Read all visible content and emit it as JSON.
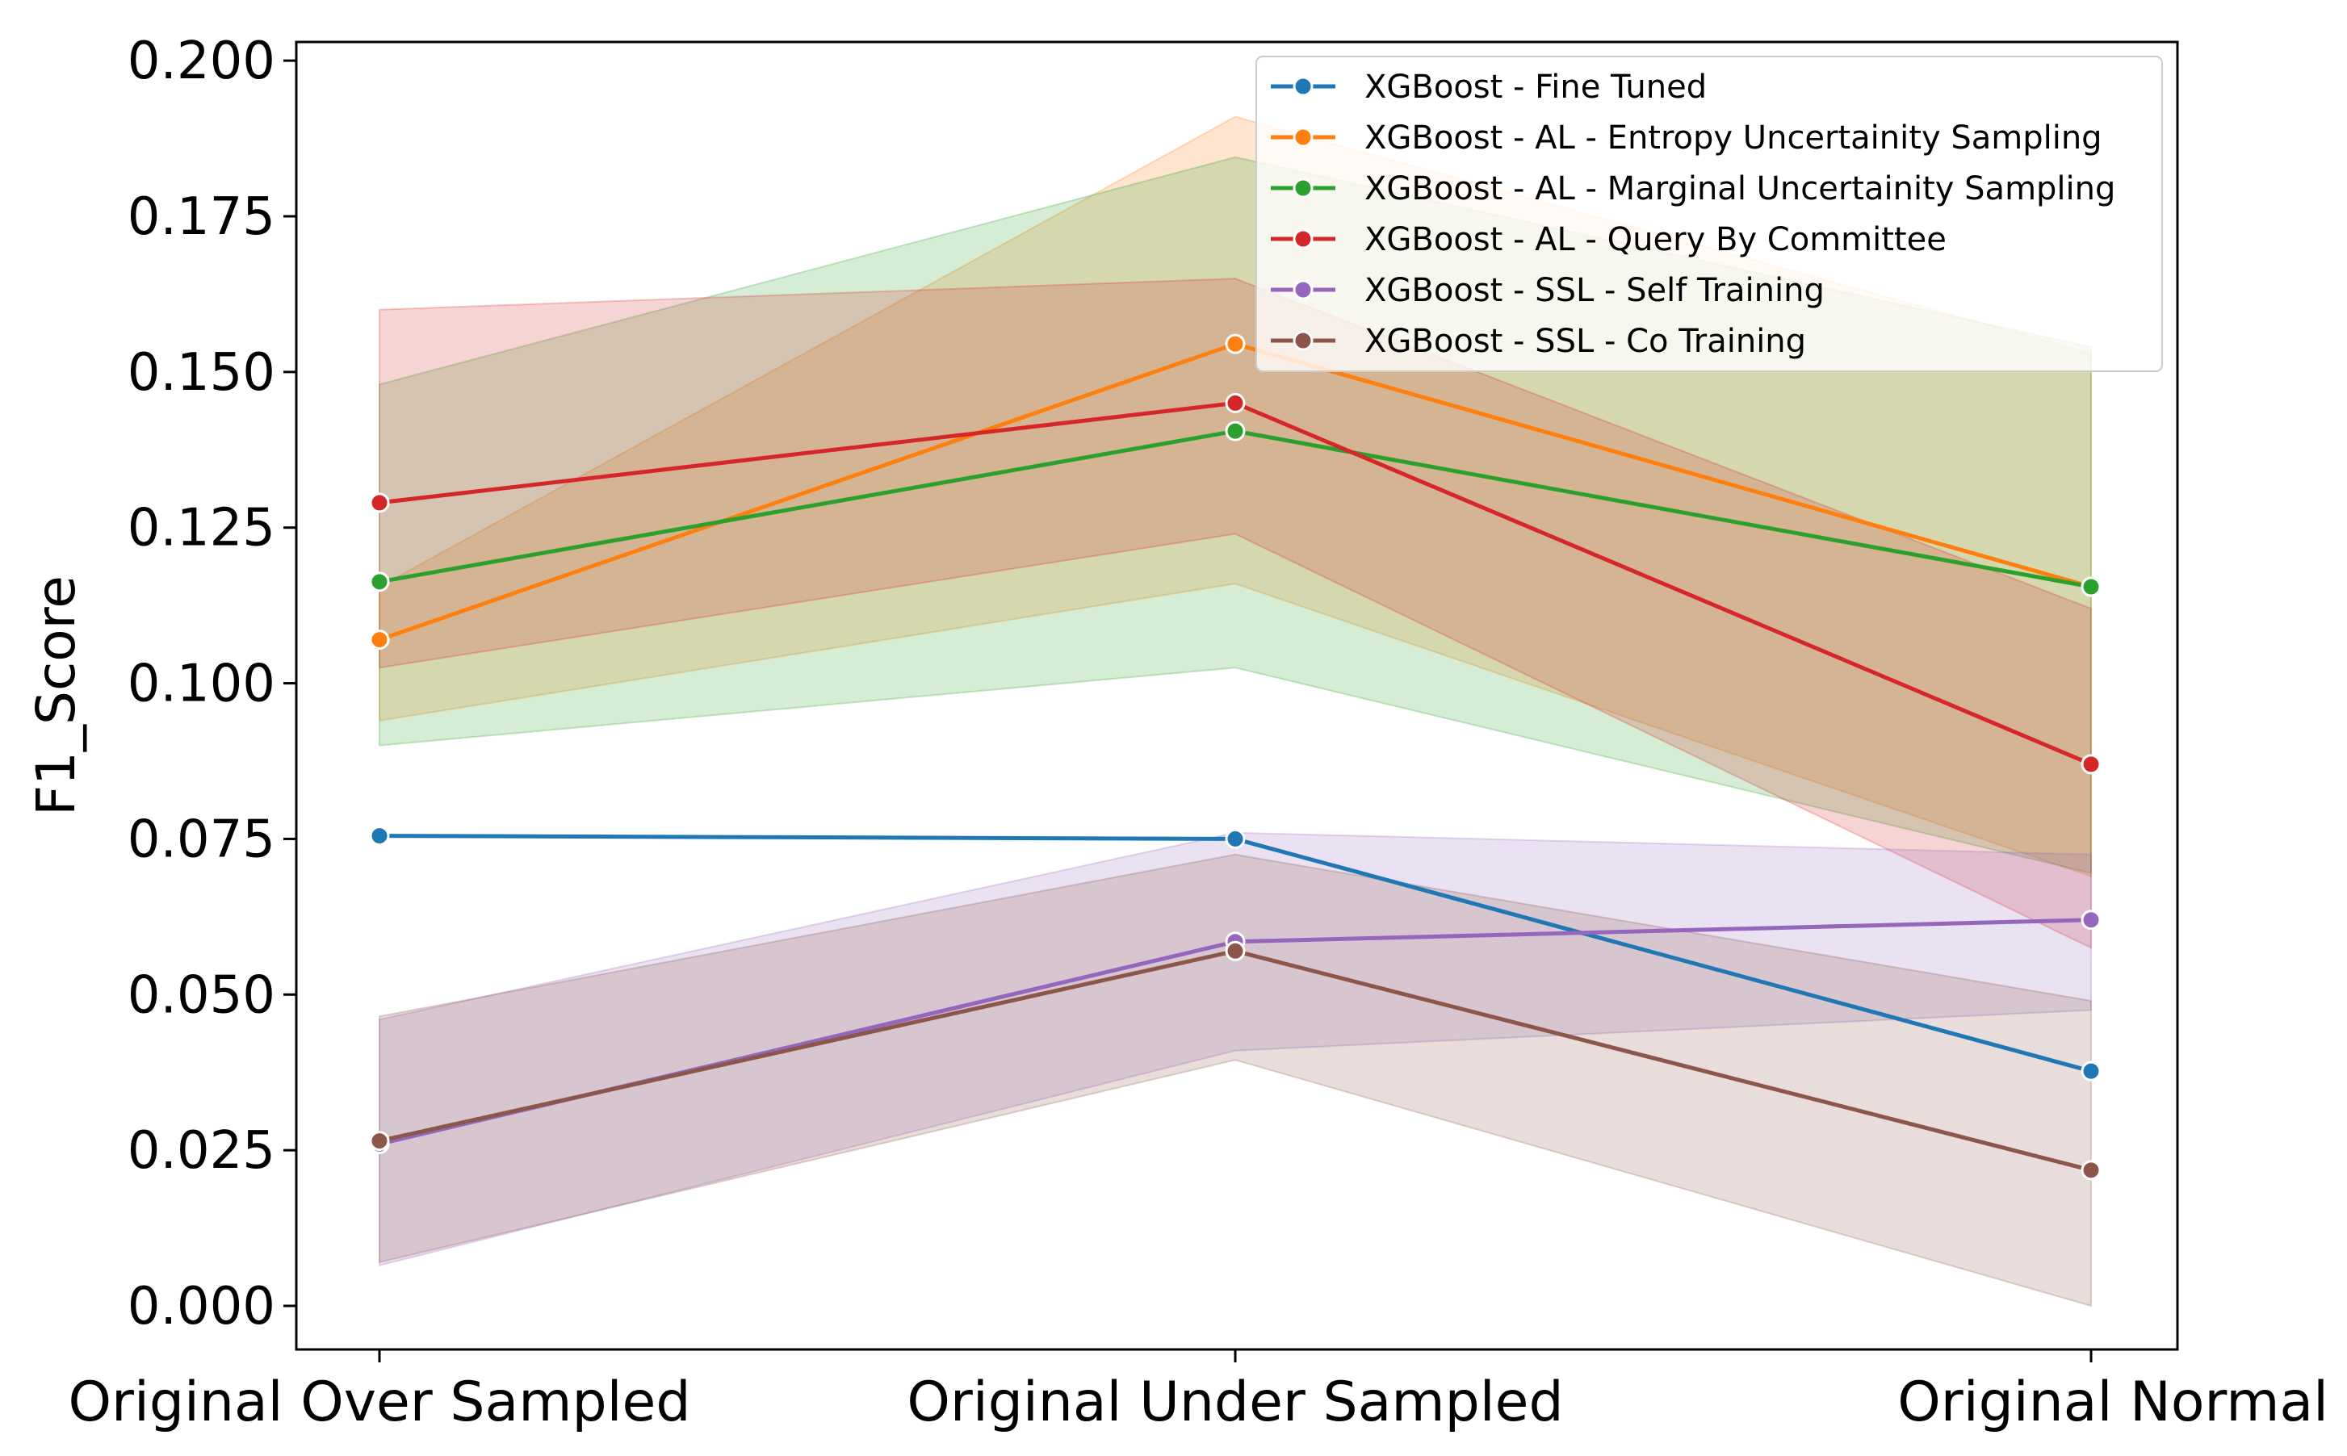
{
  "chart_data": {
    "type": "line",
    "title": "",
    "xlabel": "",
    "ylabel": "F1_Score",
    "ylim": [
      -0.007,
      0.203
    ],
    "grid": false,
    "legend_position": "top-right",
    "categories": [
      "Original Over Sampled",
      "Original Under Sampled",
      "Original Normal"
    ],
    "y_ticks": [
      "0.000",
      "0.025",
      "0.050",
      "0.075",
      "0.100",
      "0.125",
      "0.150",
      "0.175",
      "0.200"
    ],
    "series": [
      {
        "name": "XGBoost - Fine Tuned",
        "color": "#1f77b4",
        "values": [
          0.0755,
          0.075,
          0.0377
        ],
        "ci_low": null,
        "ci_high": null
      },
      {
        "name": "XGBoost - AL - Entropy Uncertainity Sampling",
        "color": "#ff7f0e",
        "values": [
          0.107,
          0.1545,
          0.1155
        ],
        "ci_low": [
          0.094,
          0.116,
          0.069
        ],
        "ci_high": [
          0.1155,
          0.191,
          0.153
        ]
      },
      {
        "name": "XGBoost - AL - Marginal Uncertainity Sampling",
        "color": "#2ca02c",
        "values": [
          0.1163,
          0.1405,
          0.1155
        ],
        "ci_low": [
          0.09,
          0.1025,
          0.0695
        ],
        "ci_high": [
          0.148,
          0.1845,
          0.154
        ]
      },
      {
        "name": "XGBoost - AL - Query By Committee",
        "color": "#d62728",
        "values": [
          0.129,
          0.145,
          0.087
        ],
        "ci_low": [
          0.1025,
          0.124,
          0.0575
        ],
        "ci_high": [
          0.16,
          0.165,
          0.112
        ]
      },
      {
        "name": "XGBoost - SSL - Self Training",
        "color": "#9467bd",
        "values": [
          0.026,
          0.0585,
          0.062
        ],
        "ci_low": [
          0.0065,
          0.041,
          0.0475
        ],
        "ci_high": [
          0.046,
          0.076,
          0.0725
        ]
      },
      {
        "name": "XGBoost - SSL - Co Training",
        "color": "#8c564b",
        "values": [
          0.0265,
          0.057,
          0.0218
        ],
        "ci_low": [
          0.007,
          0.0395,
          0.0
        ],
        "ci_high": [
          0.0465,
          0.0725,
          0.049
        ]
      }
    ]
  }
}
